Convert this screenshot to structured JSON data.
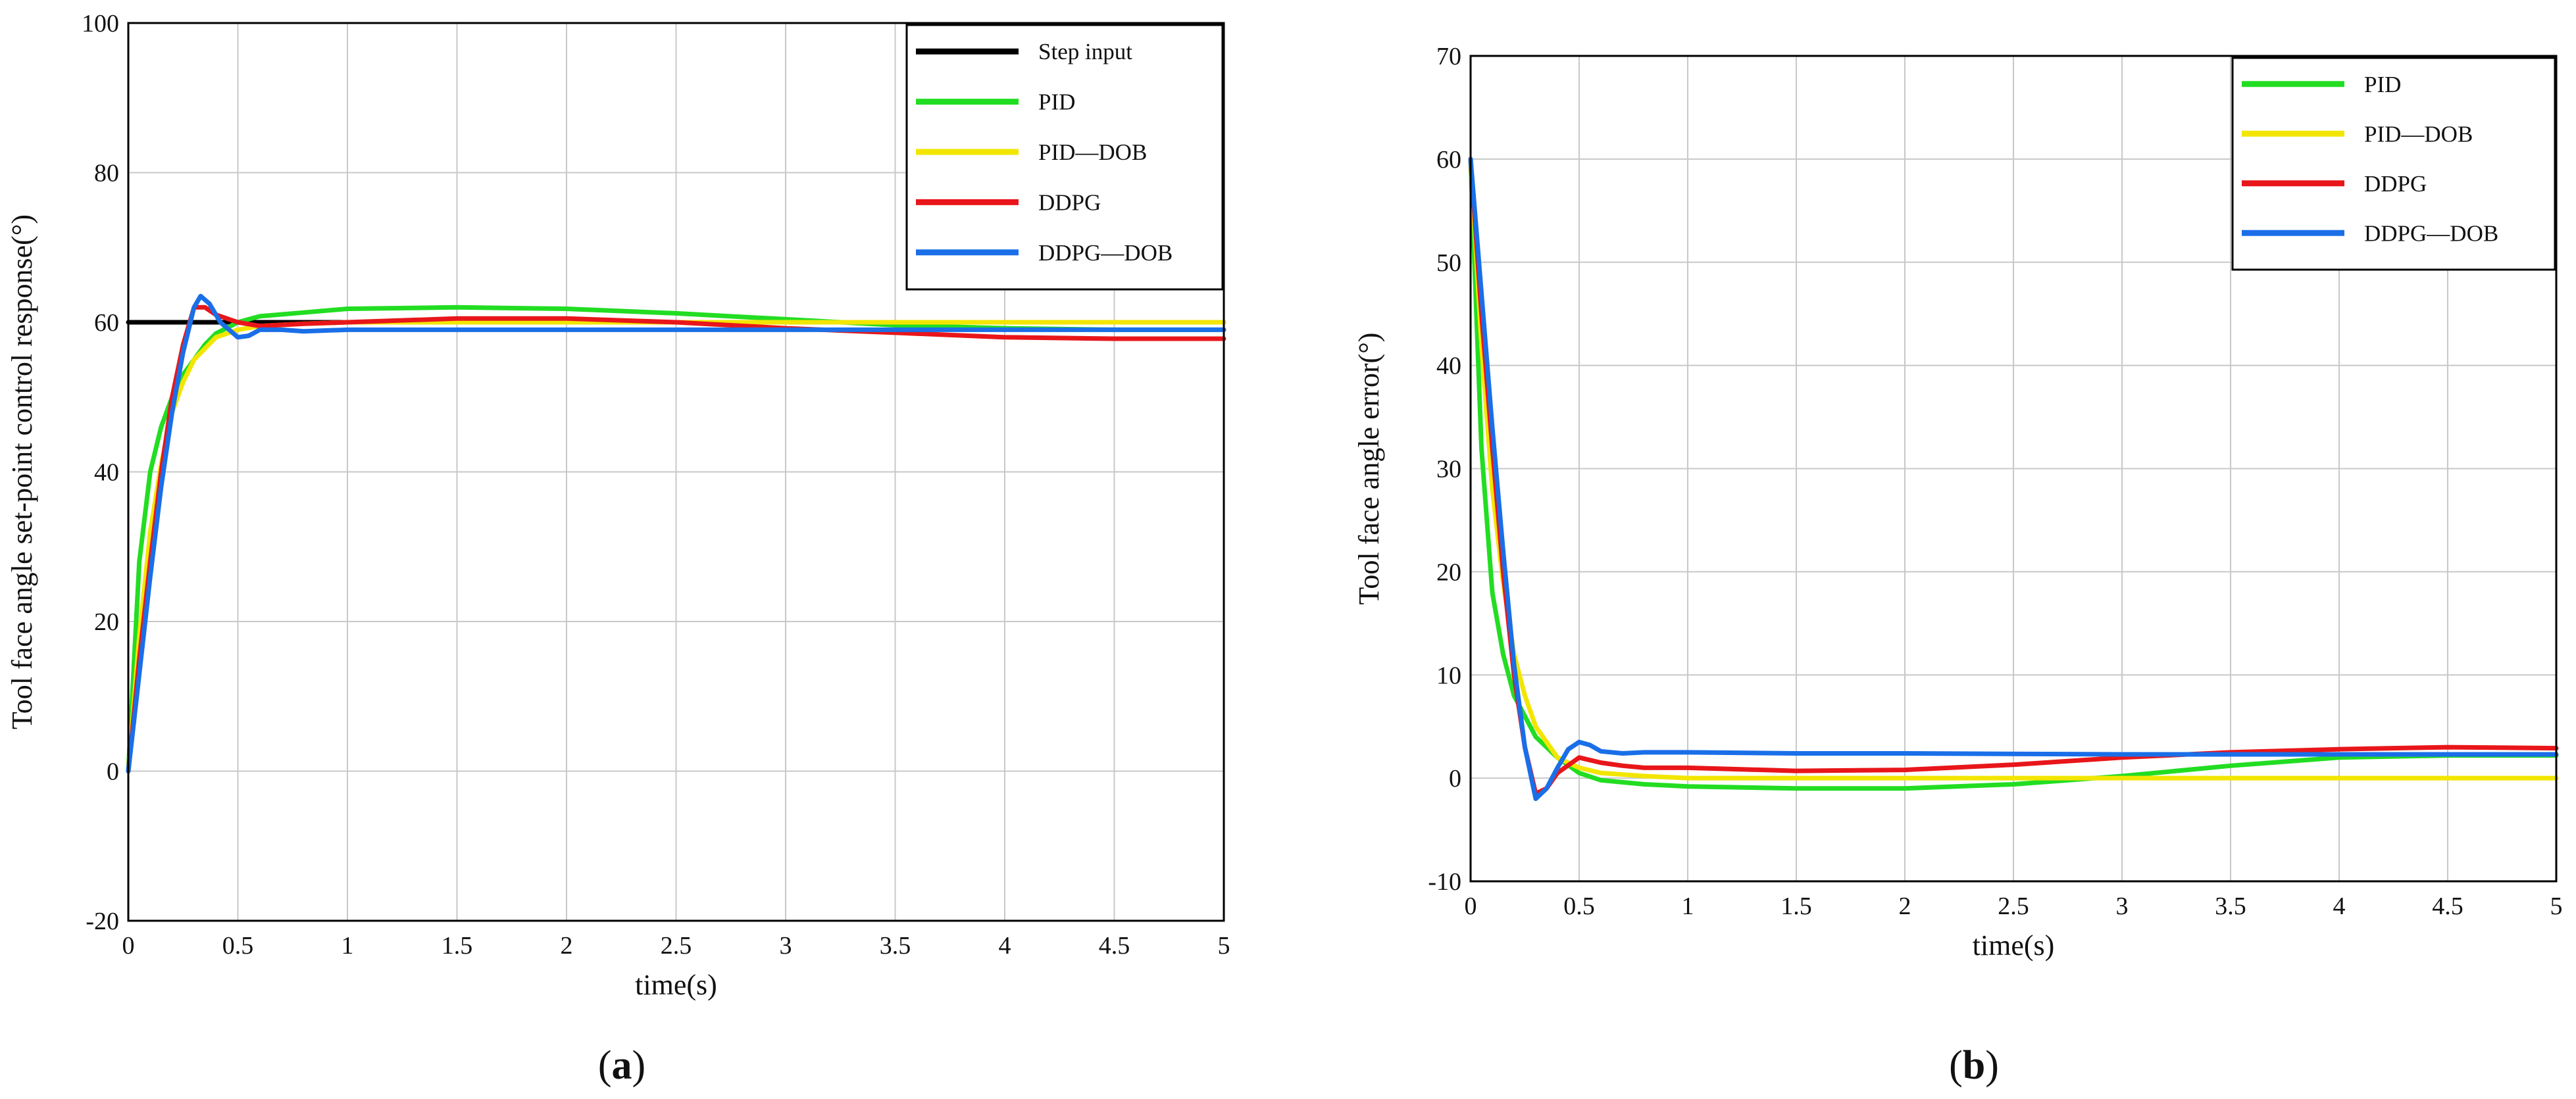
{
  "chart_data": [
    {
      "type": "line",
      "panel_label": "a",
      "title": "",
      "xlabel": "time(s)",
      "ylabel": "Tool face angle set-point control response(°)",
      "xlim": [
        0,
        5
      ],
      "ylim": [
        -20,
        100
      ],
      "xticks": [
        0,
        0.5,
        1,
        1.5,
        2,
        2.5,
        3,
        3.5,
        4,
        4.5,
        5
      ],
      "yticks": [
        -20,
        0,
        20,
        40,
        60,
        80,
        100
      ],
      "grid": true,
      "legend_position": "top-right",
      "series": [
        {
          "name": "Step input",
          "color": "#000000",
          "x": [
            0,
            5
          ],
          "y": [
            60,
            60
          ]
        },
        {
          "name": "PID",
          "color": "#22dd22",
          "x": [
            0,
            0.05,
            0.1,
            0.15,
            0.2,
            0.25,
            0.3,
            0.35,
            0.4,
            0.5,
            0.6,
            0.8,
            1.0,
            1.5,
            2.0,
            2.5,
            3.0,
            3.5,
            4.0,
            4.5,
            5.0
          ],
          "y": [
            0,
            28,
            40,
            46,
            50,
            53,
            55,
            57,
            58.5,
            60,
            60.8,
            61.3,
            61.8,
            62,
            61.8,
            61.2,
            60.4,
            59.6,
            59.2,
            59,
            59
          ]
        },
        {
          "name": "PID—DOB",
          "color": "#f2e600",
          "x": [
            0,
            0.05,
            0.1,
            0.15,
            0.2,
            0.25,
            0.3,
            0.4,
            0.5,
            0.6,
            0.8,
            1.0,
            2.0,
            3.0,
            4.0,
            5.0
          ],
          "y": [
            0,
            18,
            32,
            41,
            48,
            52,
            55,
            58,
            59,
            59.5,
            59.8,
            60,
            60,
            60,
            60,
            60
          ]
        },
        {
          "name": "DDPG",
          "color": "#e8161a",
          "x": [
            0,
            0.05,
            0.1,
            0.15,
            0.2,
            0.25,
            0.3,
            0.35,
            0.4,
            0.5,
            0.6,
            0.8,
            1.0,
            1.5,
            2.0,
            2.5,
            3.0,
            3.5,
            4.0,
            4.5,
            5.0
          ],
          "y": [
            0,
            15,
            28,
            40,
            50,
            57,
            62,
            62,
            61,
            60,
            59.5,
            59.8,
            60,
            60.5,
            60.5,
            60,
            59.2,
            58.6,
            58,
            57.8,
            57.8
          ]
        },
        {
          "name": "DDPG—DOB",
          "color": "#1a6fe8",
          "x": [
            0,
            0.05,
            0.1,
            0.15,
            0.2,
            0.25,
            0.3,
            0.33,
            0.37,
            0.42,
            0.5,
            0.55,
            0.6,
            0.7,
            0.8,
            1.0,
            1.5,
            2.0,
            3.0,
            4.0,
            5.0
          ],
          "y": [
            0,
            13,
            26,
            38,
            48,
            56,
            62,
            63.5,
            62.5,
            60,
            58,
            58.2,
            59,
            59,
            58.8,
            59,
            59,
            59,
            59,
            59,
            59
          ]
        }
      ]
    },
    {
      "type": "line",
      "panel_label": "b",
      "title": "",
      "xlabel": "time(s)",
      "ylabel": "Tool face angle error(°)",
      "xlim": [
        0,
        5
      ],
      "ylim": [
        -10,
        70
      ],
      "xticks": [
        0,
        0.5,
        1,
        1.5,
        2,
        2.5,
        3,
        3.5,
        4,
        4.5,
        5
      ],
      "yticks": [
        -10,
        0,
        10,
        20,
        30,
        40,
        50,
        60,
        70
      ],
      "grid": true,
      "legend_position": "top-right",
      "series": [
        {
          "name": "PID",
          "color": "#22dd22",
          "x": [
            0,
            0.05,
            0.1,
            0.15,
            0.2,
            0.25,
            0.3,
            0.4,
            0.5,
            0.6,
            0.8,
            1.0,
            1.5,
            2.0,
            2.5,
            3.0,
            3.5,
            4.0,
            4.5,
            5.0
          ],
          "y": [
            60,
            32,
            18,
            12,
            8,
            6,
            4,
            2,
            0.5,
            -0.2,
            -0.6,
            -0.8,
            -1,
            -1,
            -0.6,
            0.2,
            1.2,
            2,
            2.2,
            2.2
          ]
        },
        {
          "name": "PID—DOB",
          "color": "#f2e600",
          "x": [
            0,
            0.05,
            0.1,
            0.15,
            0.2,
            0.25,
            0.3,
            0.4,
            0.5,
            0.6,
            0.8,
            1.0,
            2.0,
            3.0,
            4.0,
            5.0
          ],
          "y": [
            60,
            42,
            28,
            19,
            12,
            8,
            5,
            2,
            1,
            0.5,
            0.2,
            0,
            0,
            0,
            0,
            0
          ]
        },
        {
          "name": "DDPG",
          "color": "#e8161a",
          "x": [
            0,
            0.05,
            0.1,
            0.15,
            0.2,
            0.25,
            0.3,
            0.35,
            0.4,
            0.5,
            0.6,
            0.7,
            0.8,
            1.0,
            1.5,
            2.0,
            2.5,
            3.0,
            3.5,
            4.0,
            4.5,
            5.0
          ],
          "y": [
            60,
            45,
            32,
            20,
            10,
            3,
            -1.5,
            -1,
            0.5,
            2,
            1.5,
            1.2,
            1,
            1,
            0.7,
            0.8,
            1.3,
            2,
            2.5,
            2.8,
            3,
            2.9
          ]
        },
        {
          "name": "DDPG—DOB",
          "color": "#1a6fe8",
          "x": [
            0,
            0.05,
            0.1,
            0.15,
            0.2,
            0.25,
            0.3,
            0.35,
            0.4,
            0.45,
            0.5,
            0.55,
            0.6,
            0.7,
            0.8,
            0.9,
            1.0,
            1.5,
            2.0,
            3.0,
            4.0,
            5.0
          ],
          "y": [
            60,
            47,
            34,
            22,
            11,
            3,
            -2,
            -1,
            1,
            2.8,
            3.5,
            3.2,
            2.6,
            2.4,
            2.5,
            2.5,
            2.5,
            2.4,
            2.4,
            2.3,
            2.3,
            2.3
          ]
        }
      ]
    }
  ]
}
